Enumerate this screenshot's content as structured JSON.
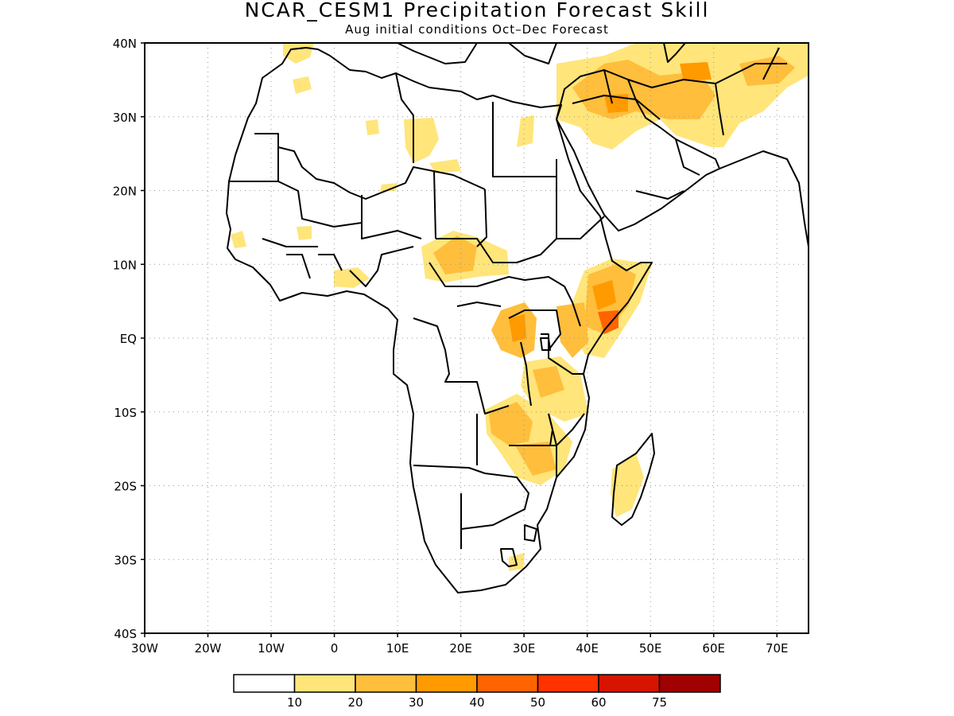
{
  "title": "NCAR_CESM1 Precipitation Forecast Skill",
  "subtitle": "Aug initial conditions  Oct–Dec Forecast",
  "map": {
    "region": "Africa",
    "lon_range": [
      -30,
      75
    ],
    "lat_range": [
      -40,
      40
    ],
    "grid": true,
    "lat_ticks": [
      {
        "value": 40,
        "label": "40N"
      },
      {
        "value": 30,
        "label": "30N"
      },
      {
        "value": 20,
        "label": "20N"
      },
      {
        "value": 10,
        "label": "10N"
      },
      {
        "value": 0,
        "label": "EQ"
      },
      {
        "value": -10,
        "label": "10S"
      },
      {
        "value": -20,
        "label": "20S"
      },
      {
        "value": -30,
        "label": "30S"
      },
      {
        "value": -40,
        "label": "40S"
      }
    ],
    "lon_ticks": [
      {
        "value": -30,
        "label": "30W"
      },
      {
        "value": -20,
        "label": "20W"
      },
      {
        "value": -10,
        "label": "10W"
      },
      {
        "value": 0,
        "label": "0"
      },
      {
        "value": 10,
        "label": "10E"
      },
      {
        "value": 20,
        "label": "20E"
      },
      {
        "value": 30,
        "label": "30E"
      },
      {
        "value": 40,
        "label": "40E"
      },
      {
        "value": 50,
        "label": "50E"
      },
      {
        "value": 60,
        "label": "60E"
      },
      {
        "value": 70,
        "label": "70E"
      }
    ]
  },
  "colorbar": {
    "colors": [
      "#ffffff",
      "#ffe57a",
      "#ffbe3c",
      "#ff9a00",
      "#ff6400",
      "#ff3200",
      "#d71400",
      "#a00000"
    ],
    "labels": [
      "10",
      "20",
      "30",
      "40",
      "50",
      "60",
      "75"
    ]
  }
}
